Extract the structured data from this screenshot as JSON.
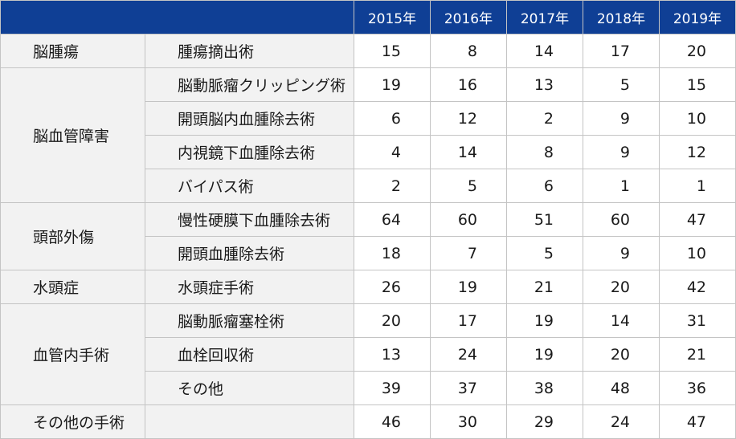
{
  "table": {
    "corner": "",
    "years": [
      "2015年",
      "2016年",
      "2017年",
      "2018年",
      "2019年"
    ],
    "groups": [
      {
        "category": "脳腫瘍",
        "rows": [
          {
            "procedure": "腫瘍摘出術",
            "values": [
              15,
              8,
              14,
              17,
              20
            ]
          }
        ]
      },
      {
        "category": "脳血管障害",
        "rows": [
          {
            "procedure": "脳動脈瘤クリッピング術",
            "values": [
              19,
              16,
              13,
              5,
              15
            ]
          },
          {
            "procedure": "開頭脳内血腫除去術",
            "values": [
              6,
              12,
              2,
              9,
              10
            ]
          },
          {
            "procedure": "内視鏡下血腫除去術",
            "values": [
              4,
              14,
              8,
              9,
              12
            ]
          },
          {
            "procedure": "バイパス術",
            "values": [
              2,
              5,
              6,
              1,
              1
            ]
          }
        ]
      },
      {
        "category": "頭部外傷",
        "rows": [
          {
            "procedure": "慢性硬膜下血腫除去術",
            "values": [
              64,
              60,
              51,
              60,
              47
            ]
          },
          {
            "procedure": "開頭血腫除去術",
            "values": [
              18,
              7,
              5,
              9,
              10
            ]
          }
        ]
      },
      {
        "category": "水頭症",
        "rows": [
          {
            "procedure": "水頭症手術",
            "values": [
              26,
              19,
              21,
              20,
              42
            ]
          }
        ]
      },
      {
        "category": "血管内手術",
        "rows": [
          {
            "procedure": "脳動脈瘤塞栓術",
            "values": [
              20,
              17,
              19,
              14,
              31
            ]
          },
          {
            "procedure": "血栓回収術",
            "values": [
              13,
              24,
              19,
              20,
              21
            ]
          },
          {
            "procedure": "その他",
            "values": [
              39,
              37,
              38,
              48,
              36
            ]
          }
        ]
      },
      {
        "category": "その他の手術",
        "rows": [
          {
            "procedure": "",
            "values": [
              46,
              30,
              29,
              24,
              47
            ]
          }
        ]
      }
    ]
  }
}
